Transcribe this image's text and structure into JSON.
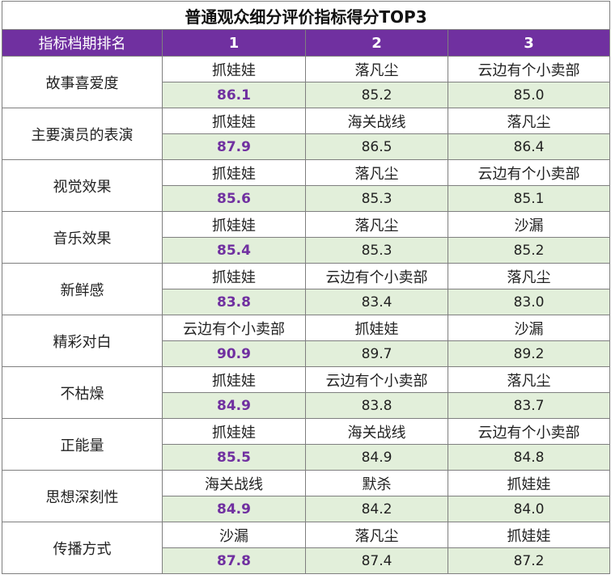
{
  "title": "普通观众细分评价指标得分TOP3",
  "header": {
    "label": "指标档期排名",
    "ranks": [
      "1",
      "2",
      "3"
    ]
  },
  "rows": [
    {
      "metric": "故事喜爱度",
      "films": [
        "抓娃娃",
        "落凡尘",
        "云边有个小卖部"
      ],
      "scores": [
        "86.1",
        "85.2",
        "85.0"
      ]
    },
    {
      "metric": "主要演员的表演",
      "films": [
        "抓娃娃",
        "海关战线",
        "落凡尘"
      ],
      "scores": [
        "87.9",
        "86.5",
        "86.4"
      ]
    },
    {
      "metric": "视觉效果",
      "films": [
        "抓娃娃",
        "落凡尘",
        "云边有个小卖部"
      ],
      "scores": [
        "85.6",
        "85.3",
        "85.1"
      ]
    },
    {
      "metric": "音乐效果",
      "films": [
        "抓娃娃",
        "落凡尘",
        "沙漏"
      ],
      "scores": [
        "85.4",
        "85.3",
        "85.2"
      ]
    },
    {
      "metric": "新鲜感",
      "films": [
        "抓娃娃",
        "云边有个小卖部",
        "落凡尘"
      ],
      "scores": [
        "83.8",
        "83.4",
        "83.0"
      ]
    },
    {
      "metric": "精彩对白",
      "films": [
        "云边有个小卖部",
        "抓娃娃",
        "沙漏"
      ],
      "scores": [
        "90.9",
        "89.7",
        "89.2"
      ]
    },
    {
      "metric": "不枯燥",
      "films": [
        "抓娃娃",
        "云边有个小卖部",
        "落凡尘"
      ],
      "scores": [
        "84.9",
        "83.8",
        "83.7"
      ]
    },
    {
      "metric": "正能量",
      "films": [
        "抓娃娃",
        "海关战线",
        "云边有个小卖部"
      ],
      "scores": [
        "85.5",
        "84.9",
        "84.8"
      ]
    },
    {
      "metric": "思想深刻性",
      "films": [
        "海关战线",
        "默杀",
        "抓娃娃"
      ],
      "scores": [
        "84.9",
        "84.2",
        "84.0"
      ]
    },
    {
      "metric": "传播方式",
      "films": [
        "沙漏",
        "落凡尘",
        "抓娃娃"
      ],
      "scores": [
        "87.8",
        "87.4",
        "87.2"
      ]
    }
  ],
  "colors": {
    "header_bg": "#7030a0",
    "score_bg": "#e2efda",
    "top_score": "#7030a0"
  }
}
